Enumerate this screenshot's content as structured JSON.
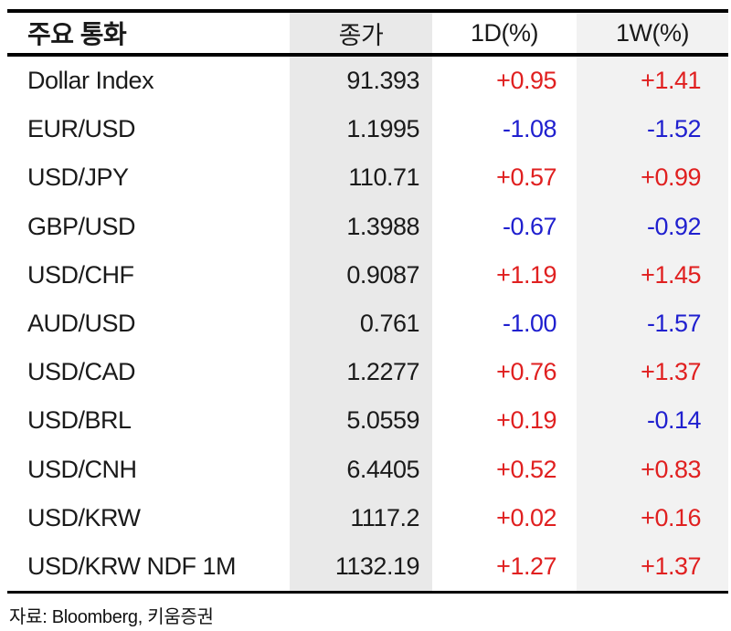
{
  "chart_data": {
    "type": "table",
    "title": "주요 통화",
    "columns": [
      "주요 통화",
      "종가",
      "1D(%)",
      "1W(%)"
    ],
    "rows": [
      {
        "name": "Dollar Index",
        "close": "91.393",
        "d1": "+0.95",
        "w1": "+1.41"
      },
      {
        "name": "EUR/USD",
        "close": "1.1995",
        "d1": "-1.08",
        "w1": "-1.52"
      },
      {
        "name": "USD/JPY",
        "close": "110.71",
        "d1": "+0.57",
        "w1": "+0.99"
      },
      {
        "name": "GBP/USD",
        "close": "1.3988",
        "d1": "-0.67",
        "w1": "-0.92"
      },
      {
        "name": "USD/CHF",
        "close": "0.9087",
        "d1": "+1.19",
        "w1": "+1.45"
      },
      {
        "name": "AUD/USD",
        "close": "0.761",
        "d1": "-1.00",
        "w1": "-1.57"
      },
      {
        "name": "USD/CAD",
        "close": "1.2277",
        "d1": "+0.76",
        "w1": "+1.37"
      },
      {
        "name": "USD/BRL",
        "close": "5.0559",
        "d1": "+0.19",
        "w1": "-0.14"
      },
      {
        "name": "USD/CNH",
        "close": "6.4405",
        "d1": "+0.52",
        "w1": "+0.83"
      },
      {
        "name": "USD/KRW",
        "close": "1117.2",
        "d1": "+0.02",
        "w1": "+0.16"
      },
      {
        "name": "USD/KRW NDF 1M",
        "close": "1132.19",
        "d1": "+1.27",
        "w1": "+1.37"
      }
    ]
  },
  "footer": {
    "source": "자료: Bloomberg, 키움증권"
  },
  "colors": {
    "positive": "#e02020",
    "negative": "#2020cf",
    "close_col_bg": "#e9e9e9",
    "week_col_bg": "#f2f2f2"
  }
}
